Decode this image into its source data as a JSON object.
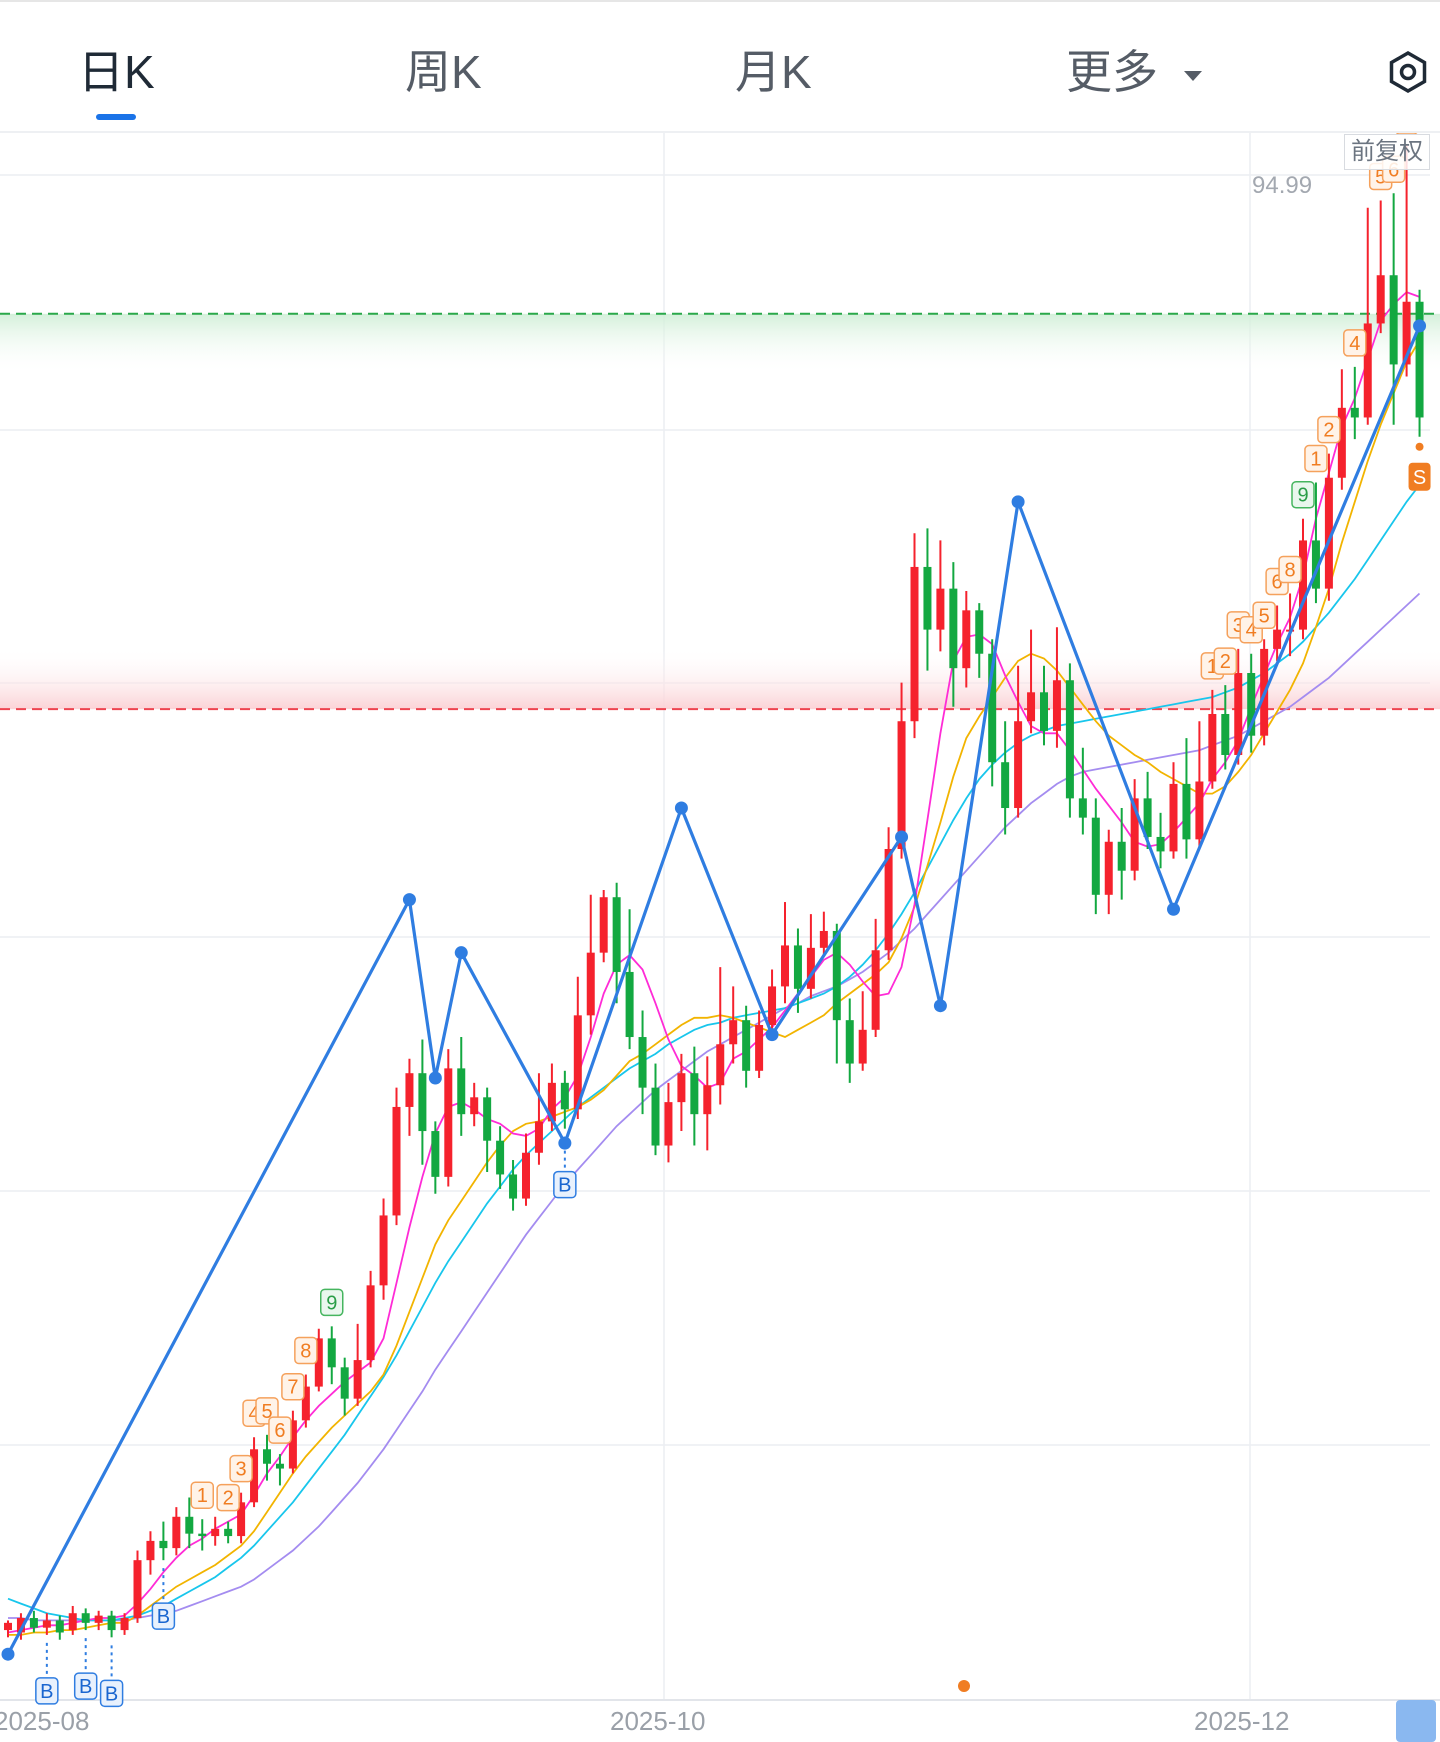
{
  "tabs": [
    {
      "label": "日K",
      "active": true
    },
    {
      "label": "周K",
      "active": false
    },
    {
      "label": "月K",
      "active": false
    },
    {
      "label": "更多",
      "active": false
    }
  ],
  "settings_icon": "hexagon-settings-icon",
  "adjust_label": "前复权",
  "price_label": "94.99",
  "colors": {
    "up": "#f5222d",
    "down": "#13a841",
    "accent": "#1a73e8",
    "ma5": "#ff2bd6",
    "ma10": "#f2b400",
    "ma20": "#18c6ec",
    "ma30": "#a48cf0",
    "zigzag": "#2f7de1",
    "resistance": "#2aa84a",
    "support": "#ee4450"
  },
  "chart_data": {
    "type": "candlestick",
    "x_labels": [
      "2025-08",
      "2025-10",
      "2025-12"
    ],
    "ylim": [
      34,
      99
    ],
    "resistance_level": 91.5,
    "support_level": 75.1,
    "candles": [
      [
        36.9,
        37.2,
        36.6,
        37.3
      ],
      [
        36.8,
        37.4,
        36.5,
        37.6
      ],
      [
        37.4,
        37.0,
        36.8,
        37.7
      ],
      [
        37.0,
        37.3,
        36.7,
        37.6
      ],
      [
        37.3,
        36.8,
        36.5,
        37.5
      ],
      [
        36.9,
        37.6,
        36.7,
        37.9
      ],
      [
        37.6,
        37.2,
        36.9,
        37.8
      ],
      [
        37.2,
        37.5,
        36.9,
        37.7
      ],
      [
        37.5,
        36.9,
        36.6,
        37.7
      ],
      [
        36.9,
        37.4,
        36.7,
        37.6
      ],
      [
        37.4,
        39.8,
        37.2,
        40.2
      ],
      [
        39.8,
        40.6,
        39.2,
        41.0
      ],
      [
        40.6,
        40.3,
        39.8,
        41.4
      ],
      [
        40.3,
        41.6,
        40.0,
        42.0
      ],
      [
        41.6,
        40.9,
        40.3,
        42.4
      ],
      [
        40.9,
        40.8,
        40.2,
        41.5
      ],
      [
        40.8,
        41.1,
        40.4,
        41.6
      ],
      [
        41.1,
        40.8,
        40.5,
        41.4
      ],
      [
        40.8,
        42.2,
        40.5,
        42.6
      ],
      [
        42.2,
        44.4,
        42.0,
        44.9
      ],
      [
        44.4,
        43.8,
        43.1,
        45.0
      ],
      [
        43.8,
        43.6,
        42.9,
        44.2
      ],
      [
        43.6,
        45.6,
        43.4,
        46.0
      ],
      [
        45.6,
        47.0,
        45.3,
        47.5
      ],
      [
        47.0,
        49.0,
        46.8,
        49.4
      ],
      [
        49.0,
        47.8,
        47.1,
        49.5
      ],
      [
        47.8,
        46.5,
        45.8,
        48.2
      ],
      [
        46.5,
        48.1,
        46.2,
        49.6
      ],
      [
        48.1,
        51.2,
        47.8,
        51.8
      ],
      [
        51.2,
        54.1,
        50.6,
        54.8
      ],
      [
        54.1,
        58.6,
        53.7,
        59.4
      ],
      [
        58.6,
        60.0,
        57.4,
        60.6
      ],
      [
        60.0,
        57.6,
        56.2,
        61.4
      ],
      [
        57.6,
        55.7,
        55.0,
        58.0
      ],
      [
        55.7,
        60.2,
        55.3,
        61.0
      ],
      [
        60.2,
        58.3,
        57.4,
        61.5
      ],
      [
        58.3,
        59.0,
        57.8,
        59.6
      ],
      [
        59.0,
        57.2,
        55.9,
        59.4
      ],
      [
        57.2,
        55.8,
        55.2,
        57.8
      ],
      [
        55.8,
        54.8,
        54.3,
        56.4
      ],
      [
        54.8,
        56.7,
        54.5,
        57.5
      ],
      [
        56.7,
        58.0,
        56.2,
        60.0
      ],
      [
        58.0,
        59.6,
        57.6,
        60.4
      ],
      [
        59.6,
        58.5,
        57.7,
        60.1
      ],
      [
        58.5,
        62.4,
        58.1,
        64.0
      ],
      [
        62.4,
        65.0,
        61.6,
        67.4
      ],
      [
        65.0,
        67.3,
        64.6,
        67.6
      ],
      [
        67.3,
        64.2,
        62.9,
        67.9
      ],
      [
        64.2,
        61.5,
        61.0,
        66.8
      ],
      [
        61.5,
        59.4,
        58.3,
        62.6
      ],
      [
        59.4,
        57.0,
        56.6,
        60.4
      ],
      [
        57.0,
        58.8,
        56.3,
        59.6
      ],
      [
        58.8,
        60.0,
        57.6,
        60.8
      ],
      [
        60.0,
        58.3,
        57.0,
        61.1
      ],
      [
        58.3,
        59.5,
        56.8,
        60.7
      ],
      [
        59.5,
        61.2,
        58.7,
        64.4
      ],
      [
        61.2,
        62.2,
        60.4,
        63.6
      ],
      [
        62.2,
        60.1,
        59.4,
        62.8
      ],
      [
        60.1,
        62.0,
        59.8,
        62.6
      ],
      [
        62.0,
        63.6,
        61.6,
        64.3
      ],
      [
        63.6,
        65.3,
        62.9,
        67.1
      ],
      [
        65.3,
        63.5,
        62.5,
        66.0
      ],
      [
        63.5,
        65.2,
        63.1,
        66.6
      ],
      [
        65.2,
        65.9,
        64.9,
        66.7
      ],
      [
        65.9,
        62.2,
        60.4,
        66.2
      ],
      [
        62.2,
        60.4,
        59.6,
        63.1
      ],
      [
        60.4,
        61.8,
        60.1,
        63.4
      ],
      [
        61.8,
        65.1,
        61.5,
        66.4
      ],
      [
        65.1,
        69.3,
        64.7,
        70.2
      ],
      [
        69.3,
        74.6,
        68.9,
        76.2
      ],
      [
        74.6,
        81.0,
        73.9,
        82.4
      ],
      [
        81.0,
        78.4,
        76.7,
        82.6
      ],
      [
        78.4,
        80.1,
        77.5,
        82.1
      ],
      [
        80.1,
        76.8,
        75.2,
        81.2
      ],
      [
        76.8,
        79.2,
        76.0,
        80.0
      ],
      [
        79.2,
        77.4,
        76.4,
        79.5
      ],
      [
        77.4,
        72.9,
        71.9,
        78.0
      ],
      [
        72.9,
        71.0,
        69.9,
        74.6
      ],
      [
        71.0,
        74.6,
        70.6,
        76.9
      ],
      [
        74.6,
        75.8,
        74.1,
        78.4
      ],
      [
        75.8,
        74.2,
        73.6,
        76.9
      ],
      [
        74.2,
        76.3,
        73.5,
        78.5
      ],
      [
        76.3,
        71.4,
        70.6,
        77.0
      ],
      [
        71.4,
        70.6,
        69.9,
        73.5
      ],
      [
        70.6,
        67.4,
        66.6,
        71.4
      ],
      [
        67.4,
        69.6,
        66.6,
        70.1
      ],
      [
        69.6,
        68.4,
        67.2,
        71.0
      ],
      [
        68.4,
        71.4,
        68.0,
        72.2
      ],
      [
        71.4,
        69.8,
        69.3,
        72.5
      ],
      [
        69.8,
        69.2,
        68.5,
        70.8
      ],
      [
        69.2,
        72.0,
        68.9,
        72.9
      ],
      [
        72.0,
        69.7,
        68.9,
        73.9
      ],
      [
        69.7,
        72.1,
        69.4,
        74.6
      ],
      [
        72.1,
        74.9,
        71.8,
        75.9
      ],
      [
        74.9,
        73.2,
        72.6,
        76.1
      ],
      [
        73.2,
        76.6,
        72.8,
        77.6
      ],
      [
        76.6,
        74.0,
        73.3,
        77.4
      ],
      [
        74.0,
        77.6,
        73.6,
        78.0
      ],
      [
        77.6,
        78.4,
        77.1,
        79.4
      ],
      [
        78.4,
        78.4,
        77.3,
        79.9
      ],
      [
        78.4,
        82.1,
        78.0,
        83.0
      ],
      [
        82.1,
        80.1,
        79.5,
        84.5
      ],
      [
        80.1,
        84.7,
        79.6,
        85.7
      ],
      [
        84.7,
        87.6,
        84.2,
        89.2
      ],
      [
        87.6,
        87.2,
        86.3,
        89.3
      ],
      [
        87.2,
        91.1,
        86.9,
        95.9
      ],
      [
        91.1,
        93.1,
        90.7,
        96.2
      ],
      [
        93.1,
        89.4,
        86.9,
        96.5
      ],
      [
        89.4,
        92.0,
        88.9,
        98.5
      ],
      [
        92.0,
        87.2,
        86.4,
        92.5
      ]
    ],
    "ma5": [
      36.8,
      36.9,
      37.0,
      37.1,
      37.1,
      37.2,
      37.3,
      37.4,
      37.4,
      37.5,
      38.0,
      38.6,
      39.3,
      39.9,
      40.4,
      40.7,
      41.1,
      41.4,
      41.7,
      42.5,
      43.4,
      44.1,
      44.9,
      45.6,
      46.2,
      46.7,
      47.2,
      47.6,
      48.0,
      49.0,
      51.3,
      53.6,
      55.7,
      57.5,
      58.6,
      58.8,
      58.5,
      58.1,
      57.9,
      57.5,
      57.4,
      57.7,
      58.5,
      59.0,
      59.9,
      61.5,
      63.3,
      64.5,
      64.9,
      64.3,
      62.9,
      61.4,
      60.3,
      59.9,
      59.4,
      59.6,
      60.6,
      60.9,
      61.4,
      61.9,
      62.6,
      63.3,
      64.0,
      64.7,
      65.0,
      64.5,
      63.8,
      63.2,
      63.3,
      64.4,
      67.0,
      70.5,
      74.1,
      77.1,
      78.1,
      78.2,
      77.8,
      76.5,
      75.4,
      74.4,
      74.1,
      74.1,
      73.4,
      72.6,
      71.8,
      71.1,
      70.4,
      69.6,
      69.4,
      69.5,
      70.0,
      70.6,
      71.2,
      72.2,
      72.9,
      73.8,
      75.2,
      76.5,
      77.8,
      78.9,
      80.6,
      83.0,
      84.9,
      86.8,
      88.0,
      89.6,
      91.2,
      91.9,
      92.4,
      92.2
    ],
    "ma10": [
      36.7,
      36.7,
      36.8,
      36.8,
      36.9,
      36.9,
      37.0,
      37.1,
      37.2,
      37.2,
      37.5,
      37.9,
      38.3,
      38.7,
      39.0,
      39.3,
      39.6,
      40.0,
      40.4,
      41.0,
      41.8,
      42.6,
      43.4,
      44.1,
      44.7,
      45.3,
      45.8,
      46.3,
      46.8,
      47.5,
      48.7,
      50.1,
      51.5,
      52.9,
      53.9,
      54.7,
      55.5,
      56.3,
      57.0,
      57.6,
      57.9,
      58.0,
      58.2,
      58.4,
      58.6,
      58.9,
      59.3,
      59.9,
      60.5,
      60.8,
      61.2,
      61.6,
      62.0,
      62.3,
      62.3,
      62.4,
      62.3,
      62.1,
      61.9,
      61.7,
      61.5,
      61.8,
      62.1,
      62.4,
      62.9,
      63.3,
      63.7,
      64.1,
      64.6,
      65.6,
      66.9,
      68.6,
      70.4,
      72.3,
      73.9,
      74.8,
      75.6,
      76.4,
      77.1,
      77.4,
      77.2,
      76.7,
      76.0,
      75.3,
      74.6,
      74.0,
      73.6,
      73.2,
      72.9,
      72.5,
      72.2,
      71.9,
      71.6,
      71.6,
      71.9,
      72.5,
      73.2,
      74.1,
      75.0,
      75.9,
      77.0,
      78.5,
      80.1,
      82.0,
      83.7,
      85.4,
      86.9,
      88.2,
      89.5,
      90.4
    ],
    "ma20": [
      38.2,
      38.0,
      37.8,
      37.6,
      37.5,
      37.4,
      37.3,
      37.3,
      37.3,
      37.4,
      37.5,
      37.7,
      37.9,
      38.2,
      38.5,
      38.8,
      39.1,
      39.5,
      39.9,
      40.4,
      41.0,
      41.6,
      42.2,
      42.9,
      43.6,
      44.3,
      45.0,
      45.8,
      46.6,
      47.4,
      48.3,
      49.3,
      50.3,
      51.3,
      52.2,
      53.0,
      53.8,
      54.6,
      55.3,
      56.0,
      56.6,
      57.1,
      57.6,
      58.1,
      58.6,
      59.0,
      59.4,
      59.8,
      60.2,
      60.5,
      60.8,
      61.2,
      61.5,
      61.8,
      62.0,
      62.1,
      62.3,
      62.4,
      62.5,
      62.6,
      62.7,
      62.9,
      63.1,
      63.3,
      63.6,
      64.0,
      64.5,
      65.1,
      65.8,
      66.6,
      67.5,
      68.5,
      69.5,
      70.5,
      71.4,
      72.2,
      72.8,
      73.3,
      73.7,
      74.0,
      74.2,
      74.4,
      74.5,
      74.6,
      74.7,
      74.8,
      74.9,
      75.0,
      75.1,
      75.2,
      75.3,
      75.4,
      75.5,
      75.6,
      75.8,
      76.0,
      76.3,
      76.6,
      77.0,
      77.4,
      77.9,
      78.5,
      79.1,
      79.8,
      80.5,
      81.3,
      82.1,
      82.9,
      83.7,
      84.4
    ],
    "ma30": [
      37.4,
      37.4,
      37.3,
      37.3,
      37.3,
      37.3,
      37.3,
      37.3,
      37.3,
      37.3,
      37.4,
      37.5,
      37.6,
      37.7,
      37.9,
      38.1,
      38.3,
      38.5,
      38.7,
      39.0,
      39.4,
      39.8,
      40.2,
      40.7,
      41.2,
      41.8,
      42.4,
      43.0,
      43.7,
      44.4,
      45.2,
      46.0,
      46.8,
      47.7,
      48.5,
      49.3,
      50.1,
      50.9,
      51.7,
      52.5,
      53.3,
      54.0,
      54.7,
      55.4,
      56.0,
      56.6,
      57.2,
      57.8,
      58.3,
      58.8,
      59.3,
      59.7,
      60.1,
      60.5,
      60.9,
      61.2,
      61.5,
      61.8,
      62.1,
      62.4,
      62.7,
      62.9,
      63.2,
      63.4,
      63.6,
      63.9,
      64.2,
      64.6,
      65.0,
      65.5,
      66.0,
      66.6,
      67.2,
      67.8,
      68.4,
      69.0,
      69.6,
      70.2,
      70.7,
      71.2,
      71.6,
      72.0,
      72.3,
      72.5,
      72.6,
      72.7,
      72.8,
      72.9,
      73.0,
      73.1,
      73.2,
      73.3,
      73.4,
      73.6,
      73.8,
      74.0,
      74.3,
      74.6,
      74.9,
      75.2,
      75.6,
      76.0,
      76.4,
      76.9,
      77.4,
      77.9,
      78.4,
      78.9,
      79.4,
      79.9
    ],
    "zigzag": [
      [
        0,
        35.9
      ],
      [
        31,
        67.2
      ],
      [
        33,
        59.8
      ],
      [
        35,
        65.0
      ],
      [
        43,
        57.1
      ],
      [
        52,
        71.0
      ],
      [
        59,
        61.6
      ],
      [
        69,
        69.8
      ],
      [
        72,
        62.8
      ],
      [
        78,
        83.7
      ],
      [
        90,
        66.8
      ],
      [
        109,
        91.0
      ]
    ],
    "td_labels": [
      {
        "i": 15,
        "text": "1",
        "kind": "sell"
      },
      {
        "i": 17,
        "text": "2",
        "kind": "sell"
      },
      {
        "i": 18,
        "text": "3",
        "kind": "sell"
      },
      {
        "i": 19,
        "text": "4",
        "kind": "sell"
      },
      {
        "i": 20,
        "text": "5",
        "kind": "sell"
      },
      {
        "i": 21,
        "text": "6",
        "kind": "sell"
      },
      {
        "i": 22,
        "text": "7",
        "kind": "sell"
      },
      {
        "i": 23,
        "text": "8",
        "kind": "sell"
      },
      {
        "i": 25,
        "text": "9",
        "kind": "buy"
      },
      {
        "i": 93,
        "text": "1",
        "kind": "sell"
      },
      {
        "i": 94,
        "text": "2",
        "kind": "sell"
      },
      {
        "i": 95,
        "text": "3",
        "kind": "sell"
      },
      {
        "i": 96,
        "text": "4",
        "kind": "sell"
      },
      {
        "i": 97,
        "text": "5",
        "kind": "sell"
      },
      {
        "i": 98,
        "text": "6",
        "kind": "sell"
      },
      {
        "i": 99,
        "text": "8",
        "kind": "sell"
      },
      {
        "i": 100,
        "text": "9",
        "kind": "buy"
      },
      {
        "i": 101,
        "text": "1",
        "kind": "sell"
      },
      {
        "i": 102,
        "text": "2",
        "kind": "sell"
      },
      {
        "i": 104,
        "text": "4",
        "kind": "sell"
      },
      {
        "i": 106,
        "text": "5",
        "kind": "sell"
      },
      {
        "i": 107,
        "text": "6",
        "kind": "sell"
      },
      {
        "i": 108,
        "text": "4",
        "kind": "sell"
      }
    ],
    "buy_markers": [
      {
        "i": 3,
        "text": "B"
      },
      {
        "i": 6,
        "text": "B"
      },
      {
        "i": 8,
        "text": "B"
      },
      {
        "i": 12,
        "text": "B"
      },
      {
        "i": 43,
        "text": "B"
      }
    ],
    "sell_markers": [
      {
        "i": 109,
        "text": "S"
      }
    ]
  }
}
